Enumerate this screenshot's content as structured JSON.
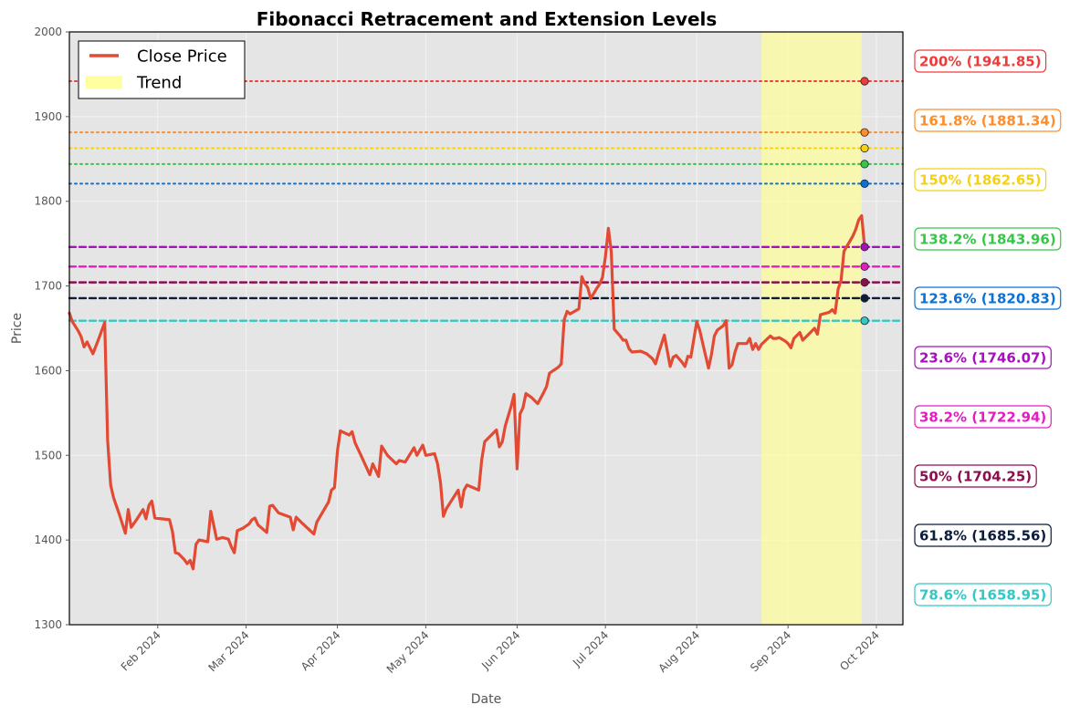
{
  "chart_data": {
    "type": "line",
    "title": "Fibonacci Retracement and Extension Levels",
    "xlabel": "Date",
    "ylabel": "Price",
    "ylim": [
      1300,
      2000
    ],
    "xlim": [
      "2024-01-01",
      "2024-10-10"
    ],
    "grid": true,
    "legend_position": "top-left",
    "y_ticks": [
      1300,
      1400,
      1500,
      1600,
      1700,
      1800,
      1900,
      2000
    ],
    "x_ticks": [
      {
        "date": "2024-01-31",
        "label": "Feb 2024"
      },
      {
        "date": "2024-03-01",
        "label": "Mar 2024"
      },
      {
        "date": "2024-04-01",
        "label": "Apr 2024"
      },
      {
        "date": "2024-05-01",
        "label": "May 2024"
      },
      {
        "date": "2024-06-01",
        "label": "Jun 2024"
      },
      {
        "date": "2024-07-01",
        "label": "Jul 2024"
      },
      {
        "date": "2024-08-01",
        "label": "Aug 2024"
      },
      {
        "date": "2024-09-01",
        "label": "Sep 2024"
      },
      {
        "date": "2024-10-01",
        "label": "Oct 2024"
      }
    ],
    "series": [
      {
        "name": "Close Price",
        "color": "#e24a33",
        "points": [
          [
            "2024-01-01",
            1668
          ],
          [
            "2024-01-02",
            1658
          ],
          [
            "2024-01-04",
            1647
          ],
          [
            "2024-01-05",
            1640
          ],
          [
            "2024-01-06",
            1628
          ],
          [
            "2024-01-07",
            1634
          ],
          [
            "2024-01-09",
            1620
          ],
          [
            "2024-01-11",
            1638
          ],
          [
            "2024-01-13",
            1657
          ],
          [
            "2024-01-14",
            1518
          ],
          [
            "2024-01-15",
            1465
          ],
          [
            "2024-01-16",
            1450
          ],
          [
            "2024-01-18",
            1430
          ],
          [
            "2024-01-20",
            1408
          ],
          [
            "2024-01-21",
            1436
          ],
          [
            "2024-01-22",
            1415
          ],
          [
            "2024-01-24",
            1425
          ],
          [
            "2024-01-26",
            1436
          ],
          [
            "2024-01-27",
            1425
          ],
          [
            "2024-01-28",
            1441
          ],
          [
            "2024-01-29",
            1446
          ],
          [
            "2024-01-30",
            1426
          ],
          [
            "2024-02-04",
            1424
          ],
          [
            "2024-02-05",
            1410
          ],
          [
            "2024-02-06",
            1385
          ],
          [
            "2024-02-07",
            1384
          ],
          [
            "2024-02-09",
            1377
          ],
          [
            "2024-02-10",
            1372
          ],
          [
            "2024-02-11",
            1376
          ],
          [
            "2024-02-12",
            1366
          ],
          [
            "2024-02-13",
            1395
          ],
          [
            "2024-02-14",
            1400
          ],
          [
            "2024-02-17",
            1398
          ],
          [
            "2024-02-18",
            1434
          ],
          [
            "2024-02-20",
            1401
          ],
          [
            "2024-02-22",
            1403
          ],
          [
            "2024-02-24",
            1401
          ],
          [
            "2024-02-25",
            1392
          ],
          [
            "2024-02-26",
            1385
          ],
          [
            "2024-02-27",
            1411
          ],
          [
            "2024-02-29",
            1414
          ],
          [
            "2024-03-02",
            1419
          ],
          [
            "2024-03-03",
            1424
          ],
          [
            "2024-03-04",
            1426
          ],
          [
            "2024-03-05",
            1418
          ],
          [
            "2024-03-08",
            1409
          ],
          [
            "2024-03-09",
            1440
          ],
          [
            "2024-03-10",
            1441
          ],
          [
            "2024-03-12",
            1432
          ],
          [
            "2024-03-16",
            1427
          ],
          [
            "2024-03-17",
            1412
          ],
          [
            "2024-03-18",
            1427
          ],
          [
            "2024-03-20",
            1420
          ],
          [
            "2024-03-24",
            1407
          ],
          [
            "2024-03-25",
            1421
          ],
          [
            "2024-03-29",
            1445
          ],
          [
            "2024-03-30",
            1459
          ],
          [
            "2024-03-31",
            1462
          ],
          [
            "2024-04-01",
            1505
          ],
          [
            "2024-04-02",
            1529
          ],
          [
            "2024-04-05",
            1524
          ],
          [
            "2024-04-06",
            1528
          ],
          [
            "2024-04-07",
            1515
          ],
          [
            "2024-04-09",
            1500
          ],
          [
            "2024-04-12",
            1477
          ],
          [
            "2024-04-13",
            1490
          ],
          [
            "2024-04-15",
            1475
          ],
          [
            "2024-04-16",
            1511
          ],
          [
            "2024-04-18",
            1500
          ],
          [
            "2024-04-21",
            1490
          ],
          [
            "2024-04-22",
            1494
          ],
          [
            "2024-04-24",
            1492
          ],
          [
            "2024-04-27",
            1509
          ],
          [
            "2024-04-28",
            1500
          ],
          [
            "2024-04-30",
            1512
          ],
          [
            "2024-05-01",
            1500
          ],
          [
            "2024-05-04",
            1502
          ],
          [
            "2024-05-05",
            1490
          ],
          [
            "2024-05-06",
            1468
          ],
          [
            "2024-05-07",
            1428
          ],
          [
            "2024-05-08",
            1437
          ],
          [
            "2024-05-12",
            1459
          ],
          [
            "2024-05-13",
            1439
          ],
          [
            "2024-05-14",
            1459
          ],
          [
            "2024-05-15",
            1465
          ],
          [
            "2024-05-19",
            1459
          ],
          [
            "2024-05-20",
            1495
          ],
          [
            "2024-05-21",
            1516
          ],
          [
            "2024-05-25",
            1530
          ],
          [
            "2024-05-26",
            1510
          ],
          [
            "2024-05-27",
            1516
          ],
          [
            "2024-05-28",
            1535
          ],
          [
            "2024-05-30",
            1558
          ],
          [
            "2024-05-31",
            1572
          ],
          [
            "2024-06-01",
            1484
          ],
          [
            "2024-06-02",
            1549
          ],
          [
            "2024-06-03",
            1556
          ],
          [
            "2024-06-04",
            1573
          ],
          [
            "2024-06-06",
            1568
          ],
          [
            "2024-06-08",
            1561
          ],
          [
            "2024-06-10",
            1574
          ],
          [
            "2024-06-11",
            1581
          ],
          [
            "2024-06-12",
            1597
          ],
          [
            "2024-06-15",
            1604
          ],
          [
            "2024-06-16",
            1608
          ],
          [
            "2024-06-17",
            1660
          ],
          [
            "2024-06-18",
            1670
          ],
          [
            "2024-06-19",
            1667
          ],
          [
            "2024-06-22",
            1673
          ],
          [
            "2024-06-23",
            1711
          ],
          [
            "2024-06-24",
            1703
          ],
          [
            "2024-06-25",
            1698
          ],
          [
            "2024-06-26",
            1685
          ],
          [
            "2024-06-28",
            1697
          ],
          [
            "2024-06-29",
            1702
          ],
          [
            "2024-06-30",
            1710
          ],
          [
            "2024-07-01",
            1735
          ],
          [
            "2024-07-02",
            1768
          ],
          [
            "2024-07-03",
            1740
          ],
          [
            "2024-07-04",
            1649
          ],
          [
            "2024-07-06",
            1641
          ],
          [
            "2024-07-07",
            1636
          ],
          [
            "2024-07-08",
            1636
          ],
          [
            "2024-07-09",
            1626
          ],
          [
            "2024-07-10",
            1622
          ],
          [
            "2024-07-13",
            1623
          ],
          [
            "2024-07-15",
            1620
          ],
          [
            "2024-07-17",
            1614
          ],
          [
            "2024-07-18",
            1608
          ],
          [
            "2024-07-19",
            1620
          ],
          [
            "2024-07-21",
            1642
          ],
          [
            "2024-07-23",
            1605
          ],
          [
            "2024-07-24",
            1616
          ],
          [
            "2024-07-25",
            1618
          ],
          [
            "2024-07-27",
            1610
          ],
          [
            "2024-07-28",
            1605
          ],
          [
            "2024-07-29",
            1617
          ],
          [
            "2024-07-30",
            1616
          ],
          [
            "2024-08-01",
            1658
          ],
          [
            "2024-08-02",
            1648
          ],
          [
            "2024-08-04",
            1618
          ],
          [
            "2024-08-05",
            1603
          ],
          [
            "2024-08-06",
            1619
          ],
          [
            "2024-08-07",
            1641
          ],
          [
            "2024-08-08",
            1648
          ],
          [
            "2024-08-10",
            1653
          ],
          [
            "2024-08-11",
            1659
          ],
          [
            "2024-08-12",
            1603
          ],
          [
            "2024-08-13",
            1607
          ],
          [
            "2024-08-14",
            1622
          ],
          [
            "2024-08-15",
            1632
          ],
          [
            "2024-08-18",
            1632
          ],
          [
            "2024-08-19",
            1638
          ],
          [
            "2024-08-20",
            1625
          ],
          [
            "2024-08-21",
            1632
          ],
          [
            "2024-08-22",
            1625
          ],
          [
            "2024-08-23",
            1631
          ],
          [
            "2024-08-26",
            1641
          ],
          [
            "2024-08-27",
            1638
          ],
          [
            "2024-08-28",
            1638
          ],
          [
            "2024-08-29",
            1639
          ],
          [
            "2024-08-31",
            1635
          ],
          [
            "2024-09-01",
            1632
          ],
          [
            "2024-09-02",
            1627
          ],
          [
            "2024-09-03",
            1638
          ],
          [
            "2024-09-05",
            1645
          ],
          [
            "2024-09-06",
            1636
          ],
          [
            "2024-09-08",
            1643
          ],
          [
            "2024-09-10",
            1650
          ],
          [
            "2024-09-11",
            1643
          ],
          [
            "2024-09-12",
            1666
          ],
          [
            "2024-09-13",
            1667
          ],
          [
            "2024-09-15",
            1669
          ],
          [
            "2024-09-16",
            1672
          ],
          [
            "2024-09-17",
            1668
          ],
          [
            "2024-09-18",
            1696
          ],
          [
            "2024-09-19",
            1707
          ],
          [
            "2024-09-20",
            1741
          ],
          [
            "2024-09-21",
            1747
          ],
          [
            "2024-09-23",
            1759
          ],
          [
            "2024-09-24",
            1767
          ],
          [
            "2024-09-25",
            1778
          ],
          [
            "2024-09-26",
            1783
          ],
          [
            "2024-09-27",
            1746
          ]
        ]
      }
    ],
    "trend_band": {
      "name": "Trend",
      "start": "2024-08-23",
      "end": "2024-09-26",
      "color": "#ffff99"
    },
    "levels": [
      {
        "label": "200% (1941.85)",
        "value": 1941.85,
        "color": "#f03b3b",
        "style": "dotted"
      },
      {
        "label": "161.8% (1881.34)",
        "value": 1881.34,
        "color": "#ff8c2a",
        "style": "dotted"
      },
      {
        "label": "150% (1862.65)",
        "value": 1862.65,
        "color": "#f5d211",
        "style": "dotted"
      },
      {
        "label": "138.2% (1843.96)",
        "value": 1843.96,
        "color": "#37c64a",
        "style": "dotted"
      },
      {
        "label": "123.6% (1820.83)",
        "value": 1820.83,
        "color": "#0a72d6",
        "style": "dotted"
      },
      {
        "label": "23.6% (1746.07)",
        "value": 1746.07,
        "color": "#a80fbf",
        "style": "dashed"
      },
      {
        "label": "38.2% (1722.94)",
        "value": 1722.94,
        "color": "#e61cc3",
        "style": "dashed"
      },
      {
        "label": "50% (1704.25)",
        "value": 1704.25,
        "color": "#8b0f4d",
        "style": "dashed"
      },
      {
        "label": "61.8% (1685.56)",
        "value": 1685.56,
        "color": "#0c1c3c",
        "style": "dashed"
      },
      {
        "label": "78.6% (1658.95)",
        "value": 1658.95,
        "color": "#35c7c4",
        "style": "dashed"
      }
    ],
    "legend": [
      {
        "label": "Close Price",
        "color": "#e24a33"
      },
      {
        "label": "Trend",
        "color": "#ffffa0"
      }
    ]
  }
}
